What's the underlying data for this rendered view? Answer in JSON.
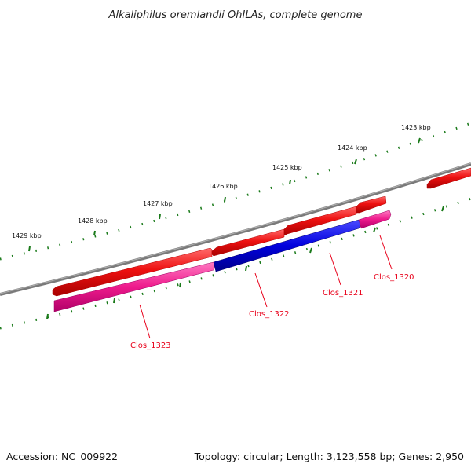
{
  "title": "Alkaliphilus oremlandii OhILAs, complete genome",
  "scale": {
    "ticks": [
      {
        "label": "1423 kbp"
      },
      {
        "label": "1424 kbp"
      },
      {
        "label": "1425 kbp"
      },
      {
        "label": "1426 kbp"
      },
      {
        "label": "1427 kbp"
      },
      {
        "label": "1428 kbp"
      },
      {
        "label": "1429 kbp"
      }
    ]
  },
  "genes": [
    {
      "id": "Clos_1320",
      "label": "Clos_1320",
      "color": "#ff1493"
    },
    {
      "id": "Clos_1321",
      "label": "Clos_1321",
      "color": "#0000dd"
    },
    {
      "id": "Clos_1322",
      "label": "Clos_1322",
      "color": "#0000dd"
    },
    {
      "id": "Clos_1323",
      "label": "Clos_1323",
      "color": "#dd0e8a"
    }
  ],
  "colors": {
    "forward_strand": "#ee1111",
    "reverse_strand_pink": "#ff1493",
    "reverse_strand_blue": "#0000dd",
    "backbone": "#808080",
    "ticks": "#1a7a1a",
    "gene_labels": "#e8001a"
  },
  "footer": {
    "accession": "Accession: NC_009922",
    "summary": "Topology: circular; Length: 3,123,558 bp; Genes: 2,950"
  }
}
